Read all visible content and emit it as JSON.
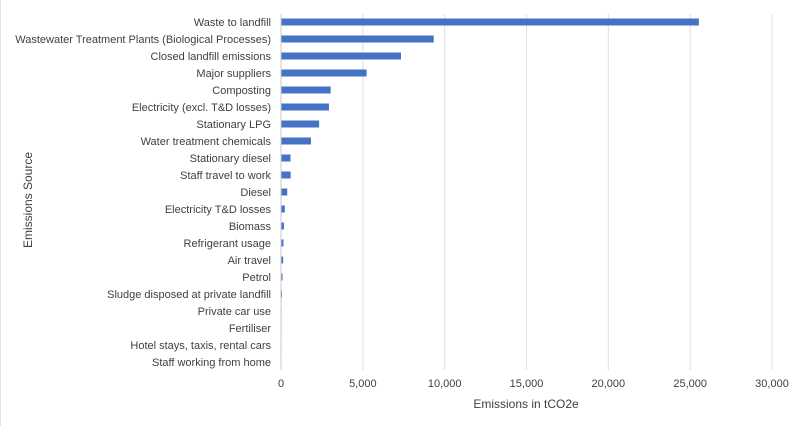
{
  "chart_data": {
    "type": "bar",
    "orientation": "horizontal",
    "title": "",
    "xlabel": "Emissions in tCO2e",
    "ylabel": "Emissions Source",
    "xlim": [
      0,
      30000
    ],
    "xticks": [
      0,
      5000,
      10000,
      15000,
      20000,
      25000,
      30000
    ],
    "xtick_labels": [
      "0",
      "5,000",
      "10,000",
      "15,000",
      "20,000",
      "25,000",
      "30,000"
    ],
    "grid": true,
    "bar_color": "#4472C4",
    "categories": [
      "Waste to landfill",
      "Wastewater Treatment Plants (Biological Processes)",
      "Closed landfill emissions",
      "Major suppliers",
      "Composting",
      "Electricity (excl. T&D losses)",
      "Stationary LPG",
      "Water treatment chemicals",
      "Stationary diesel",
      "Staff travel to work",
      "Diesel",
      "Electricity T&D losses",
      "Biomass",
      "Refrigerant usage",
      "Air travel",
      "Petrol",
      "Sludge disposed at private landfill",
      "Private car use",
      "Fertiliser",
      "Hotel stays, taxis, rental cars",
      "Staff working from home"
    ],
    "values": [
      25500,
      9300,
      7300,
      5200,
      3000,
      2900,
      2300,
      1800,
      550,
      560,
      350,
      200,
      150,
      120,
      100,
      60,
      30,
      5,
      3,
      2,
      1
    ]
  }
}
